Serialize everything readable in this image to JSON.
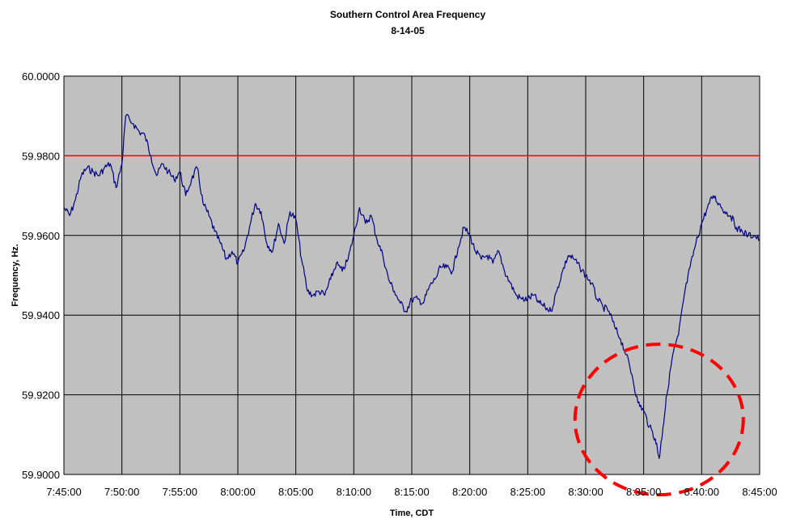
{
  "chart_data": {
    "type": "line",
    "title": "Southern Control Area Frequency",
    "subtitle": "8-14-05",
    "xlabel": "Time, CDT",
    "ylabel": "Frequency, Hz.",
    "x_tick_labels": [
      "7:45:00",
      "7:50:00",
      "7:55:00",
      "8:00:00",
      "8:05:00",
      "8:10:00",
      "8:15:00",
      "8:20:00",
      "8:25:00",
      "8:30:00",
      "8:35:00",
      "8:40:00",
      "8:45:00"
    ],
    "y_tick_labels": [
      "60.0000",
      "59.9800",
      "59.9600",
      "59.9400",
      "59.9200",
      "59.9000"
    ],
    "xlim": [
      "7:45:00",
      "8:45:00"
    ],
    "ylim": [
      59.9,
      60.0
    ],
    "grid": true,
    "legend": "none",
    "colors": {
      "series": "#000080",
      "reference": "#ff0000",
      "highlight": "#ff0000",
      "plot_background": "#c0c0c0"
    },
    "reference_line": {
      "y": 59.98
    },
    "highlight_region": {
      "shape": "dashed-ellipse",
      "x_center": "8:36:20",
      "y_center": 59.9138
    },
    "series": [
      {
        "points": [
          [
            "7:45:00",
            59.967
          ],
          [
            "7:45:30",
            59.965
          ],
          [
            "7:46:00",
            59.969
          ],
          [
            "7:46:30",
            59.975
          ],
          [
            "7:47:00",
            59.977
          ],
          [
            "7:47:30",
            59.976
          ],
          [
            "7:48:00",
            59.975
          ],
          [
            "7:48:30",
            59.977
          ],
          [
            "7:49:00",
            59.978
          ],
          [
            "7:49:30",
            59.972
          ],
          [
            "7:50:00",
            59.978
          ],
          [
            "7:50:20",
            59.99
          ],
          [
            "7:51:00",
            59.988
          ],
          [
            "7:51:30",
            59.986
          ],
          [
            "7:52:00",
            59.985
          ],
          [
            "7:52:30",
            59.98
          ],
          [
            "7:53:00",
            59.975
          ],
          [
            "7:53:30",
            59.978
          ],
          [
            "7:54:00",
            59.976
          ],
          [
            "7:54:30",
            59.974
          ],
          [
            "7:55:00",
            59.976
          ],
          [
            "7:55:30",
            59.97
          ],
          [
            "7:56:00",
            59.974
          ],
          [
            "7:56:30",
            59.977
          ],
          [
            "7:57:00",
            59.968
          ],
          [
            "7:57:30",
            59.965
          ],
          [
            "7:58:00",
            59.961
          ],
          [
            "7:58:30",
            59.958
          ],
          [
            "7:59:00",
            59.954
          ],
          [
            "7:59:30",
            59.956
          ],
          [
            "8:00:00",
            59.953
          ],
          [
            "8:00:30",
            59.956
          ],
          [
            "8:01:00",
            59.962
          ],
          [
            "8:01:30",
            59.968
          ],
          [
            "8:02:00",
            59.966
          ],
          [
            "8:02:30",
            59.958
          ],
          [
            "8:03:00",
            59.956
          ],
          [
            "8:03:30",
            59.963
          ],
          [
            "8:04:00",
            59.958
          ],
          [
            "8:04:30",
            59.966
          ],
          [
            "8:05:00",
            59.964
          ],
          [
            "8:05:30",
            59.954
          ],
          [
            "8:06:00",
            59.946
          ],
          [
            "8:06:30",
            59.945
          ],
          [
            "8:07:00",
            59.946
          ],
          [
            "8:07:30",
            59.945
          ],
          [
            "8:08:00",
            59.949
          ],
          [
            "8:08:30",
            59.953
          ],
          [
            "8:09:00",
            59.951
          ],
          [
            "8:09:30",
            59.954
          ],
          [
            "8:10:00",
            59.96
          ],
          [
            "8:10:30",
            59.967
          ],
          [
            "8:11:00",
            59.963
          ],
          [
            "8:11:30",
            59.965
          ],
          [
            "8:12:00",
            59.959
          ],
          [
            "8:12:30",
            59.955
          ],
          [
            "8:13:00",
            59.949
          ],
          [
            "8:13:30",
            59.946
          ],
          [
            "8:14:00",
            59.943
          ],
          [
            "8:14:30",
            59.941
          ],
          [
            "8:15:00",
            59.944
          ],
          [
            "8:15:30",
            59.944
          ],
          [
            "8:16:00",
            59.943
          ],
          [
            "8:16:30",
            59.947
          ],
          [
            "8:17:00",
            59.949
          ],
          [
            "8:17:30",
            59.952
          ],
          [
            "8:18:00",
            59.952
          ],
          [
            "8:18:30",
            59.951
          ],
          [
            "8:19:00",
            59.957
          ],
          [
            "8:19:30",
            59.962
          ],
          [
            "8:20:00",
            59.96
          ],
          [
            "8:20:30",
            59.956
          ],
          [
            "8:21:00",
            59.954
          ],
          [
            "8:21:30",
            59.955
          ],
          [
            "8:22:00",
            59.953
          ],
          [
            "8:22:30",
            59.956
          ],
          [
            "8:23:00",
            59.951
          ],
          [
            "8:23:30",
            59.948
          ],
          [
            "8:24:00",
            59.945
          ],
          [
            "8:24:30",
            59.944
          ],
          [
            "8:25:00",
            59.944
          ],
          [
            "8:25:30",
            59.945
          ],
          [
            "8:26:00",
            59.943
          ],
          [
            "8:26:30",
            59.942
          ],
          [
            "8:27:00",
            59.941
          ],
          [
            "8:27:30",
            59.946
          ],
          [
            "8:28:00",
            59.951
          ],
          [
            "8:28:30",
            59.955
          ],
          [
            "8:29:00",
            59.954
          ],
          [
            "8:29:30",
            59.952
          ],
          [
            "8:30:00",
            59.95
          ],
          [
            "8:30:30",
            59.948
          ],
          [
            "8:31:00",
            59.944
          ],
          [
            "8:31:30",
            59.942
          ],
          [
            "8:32:00",
            59.941
          ],
          [
            "8:32:30",
            59.937
          ],
          [
            "8:33:00",
            59.934
          ],
          [
            "8:33:30",
            59.93
          ],
          [
            "8:34:00",
            59.925
          ],
          [
            "8:34:30",
            59.918
          ],
          [
            "8:35:00",
            59.916
          ],
          [
            "8:35:30",
            59.912
          ],
          [
            "8:36:00",
            59.909
          ],
          [
            "8:36:20",
            59.904
          ],
          [
            "8:36:40",
            59.912
          ],
          [
            "8:37:00",
            59.92
          ],
          [
            "8:37:30",
            59.93
          ],
          [
            "8:38:00",
            59.935
          ],
          [
            "8:38:30",
            59.945
          ],
          [
            "8:39:00",
            59.952
          ],
          [
            "8:39:30",
            59.958
          ],
          [
            "8:40:00",
            59.963
          ],
          [
            "8:40:30",
            59.967
          ],
          [
            "8:41:00",
            59.97
          ],
          [
            "8:41:30",
            59.968
          ],
          [
            "8:42:00",
            59.966
          ],
          [
            "8:42:30",
            59.965
          ],
          [
            "8:43:00",
            59.962
          ],
          [
            "8:43:30",
            59.961
          ],
          [
            "8:44:00",
            59.96
          ],
          [
            "8:44:30",
            59.96
          ],
          [
            "8:45:00",
            59.959
          ]
        ]
      }
    ]
  }
}
